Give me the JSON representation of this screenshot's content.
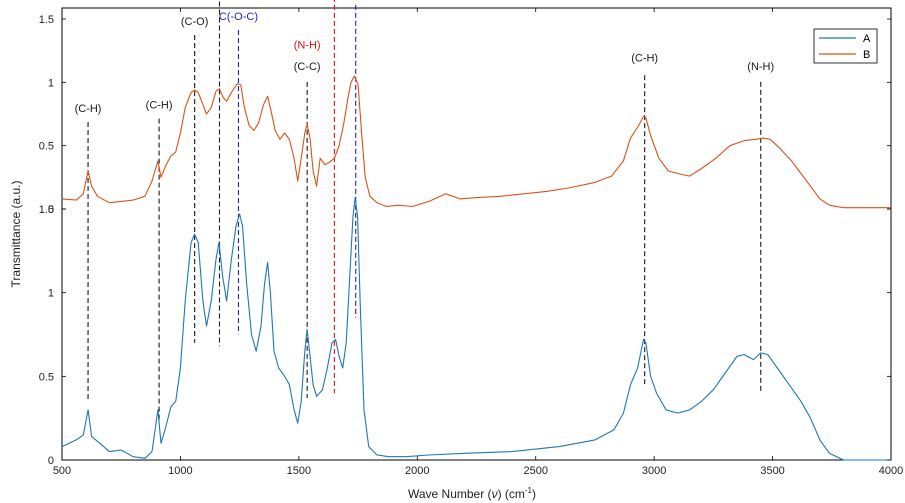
{
  "chart_data": {
    "type": "line",
    "xlabel_prefix": "Wave Number (",
    "xlabel_nu": "ν",
    "xlabel_mid": ") (cm",
    "xlabel_sup": "-1",
    "xlabel_suffix": ")",
    "ylabel": "Transmittance (a.u.)",
    "xlim": [
      500,
      4000
    ],
    "x_ticks": [
      "500",
      "1000",
      "1500",
      "2000",
      "2500",
      "3000",
      "3500",
      "4000"
    ],
    "y_ticks_top": [
      "0",
      "0.5",
      "1",
      "1.5"
    ],
    "y_ticks_bottom": [
      "0",
      "0.5",
      "1",
      "1.5"
    ],
    "legend": {
      "placement": "top-right",
      "entries": [
        "A",
        "B"
      ]
    },
    "colors": {
      "A": "#1f77b4",
      "B": "#d95319",
      "black": "#1a1a1a",
      "blue": "#1f1fd6",
      "red": "#e01010"
    },
    "series": [
      {
        "name": "A",
        "panel": "bottom",
        "points": [
          [
            500,
            0.08
          ],
          [
            560,
            0.12
          ],
          [
            590,
            0.15
          ],
          [
            610,
            0.3
          ],
          [
            625,
            0.14
          ],
          [
            660,
            0.1
          ],
          [
            700,
            0.05
          ],
          [
            750,
            0.06
          ],
          [
            800,
            0.02
          ],
          [
            850,
            0.01
          ],
          [
            880,
            0.05
          ],
          [
            905,
            0.3
          ],
          [
            918,
            0.1
          ],
          [
            935,
            0.18
          ],
          [
            960,
            0.32
          ],
          [
            980,
            0.35
          ],
          [
            1000,
            0.55
          ],
          [
            1020,
            0.95
          ],
          [
            1045,
            1.3
          ],
          [
            1060,
            1.35
          ],
          [
            1075,
            1.3
          ],
          [
            1095,
            0.95
          ],
          [
            1110,
            0.8
          ],
          [
            1130,
            0.95
          ],
          [
            1150,
            1.2
          ],
          [
            1163,
            1.3
          ],
          [
            1178,
            1.1
          ],
          [
            1195,
            0.95
          ],
          [
            1215,
            1.2
          ],
          [
            1235,
            1.4
          ],
          [
            1250,
            1.47
          ],
          [
            1262,
            1.4
          ],
          [
            1280,
            1.05
          ],
          [
            1300,
            0.75
          ],
          [
            1320,
            0.65
          ],
          [
            1340,
            0.8
          ],
          [
            1355,
            1.05
          ],
          [
            1368,
            1.18
          ],
          [
            1380,
            1.0
          ],
          [
            1395,
            0.65
          ],
          [
            1415,
            0.55
          ],
          [
            1440,
            0.5
          ],
          [
            1460,
            0.45
          ],
          [
            1480,
            0.3
          ],
          [
            1495,
            0.22
          ],
          [
            1510,
            0.35
          ],
          [
            1525,
            0.65
          ],
          [
            1535,
            0.78
          ],
          [
            1545,
            0.65
          ],
          [
            1560,
            0.45
          ],
          [
            1575,
            0.38
          ],
          [
            1600,
            0.42
          ],
          [
            1620,
            0.55
          ],
          [
            1640,
            0.7
          ],
          [
            1655,
            0.72
          ],
          [
            1670,
            0.62
          ],
          [
            1685,
            0.55
          ],
          [
            1700,
            0.7
          ],
          [
            1715,
            1.1
          ],
          [
            1728,
            1.45
          ],
          [
            1738,
            1.57
          ],
          [
            1748,
            1.45
          ],
          [
            1760,
            0.9
          ],
          [
            1775,
            0.3
          ],
          [
            1795,
            0.08
          ],
          [
            1830,
            0.03
          ],
          [
            1880,
            0.02
          ],
          [
            1950,
            0.02
          ],
          [
            2050,
            0.03
          ],
          [
            2200,
            0.04
          ],
          [
            2400,
            0.05
          ],
          [
            2600,
            0.08
          ],
          [
            2750,
            0.12
          ],
          [
            2830,
            0.18
          ],
          [
            2870,
            0.28
          ],
          [
            2900,
            0.45
          ],
          [
            2930,
            0.55
          ],
          [
            2955,
            0.72
          ],
          [
            2965,
            0.7
          ],
          [
            2985,
            0.5
          ],
          [
            3010,
            0.4
          ],
          [
            3050,
            0.3
          ],
          [
            3100,
            0.28
          ],
          [
            3150,
            0.3
          ],
          [
            3200,
            0.35
          ],
          [
            3250,
            0.42
          ],
          [
            3300,
            0.52
          ],
          [
            3350,
            0.62
          ],
          [
            3380,
            0.63
          ],
          [
            3420,
            0.6
          ],
          [
            3450,
            0.64
          ],
          [
            3480,
            0.63
          ],
          [
            3520,
            0.55
          ],
          [
            3570,
            0.45
          ],
          [
            3620,
            0.35
          ],
          [
            3660,
            0.25
          ],
          [
            3700,
            0.12
          ],
          [
            3740,
            0.04
          ],
          [
            3800,
            0.0
          ],
          [
            4000,
            0.0
          ]
        ]
      },
      {
        "name": "B",
        "panel": "top",
        "points": [
          [
            500,
            0.08
          ],
          [
            560,
            0.07
          ],
          [
            590,
            0.12
          ],
          [
            610,
            0.3
          ],
          [
            625,
            0.18
          ],
          [
            650,
            0.1
          ],
          [
            700,
            0.05
          ],
          [
            750,
            0.06
          ],
          [
            800,
            0.07
          ],
          [
            850,
            0.1
          ],
          [
            880,
            0.22
          ],
          [
            905,
            0.38
          ],
          [
            918,
            0.25
          ],
          [
            940,
            0.35
          ],
          [
            960,
            0.42
          ],
          [
            980,
            0.45
          ],
          [
            1000,
            0.6
          ],
          [
            1020,
            0.8
          ],
          [
            1045,
            0.92
          ],
          [
            1060,
            0.94
          ],
          [
            1075,
            0.92
          ],
          [
            1090,
            0.85
          ],
          [
            1110,
            0.75
          ],
          [
            1130,
            0.8
          ],
          [
            1150,
            0.93
          ],
          [
            1165,
            0.95
          ],
          [
            1180,
            0.88
          ],
          [
            1195,
            0.85
          ],
          [
            1215,
            0.92
          ],
          [
            1240,
            0.99
          ],
          [
            1255,
            0.98
          ],
          [
            1270,
            0.8
          ],
          [
            1290,
            0.66
          ],
          [
            1310,
            0.62
          ],
          [
            1330,
            0.68
          ],
          [
            1350,
            0.82
          ],
          [
            1368,
            0.89
          ],
          [
            1382,
            0.78
          ],
          [
            1400,
            0.62
          ],
          [
            1420,
            0.55
          ],
          [
            1440,
            0.6
          ],
          [
            1460,
            0.55
          ],
          [
            1480,
            0.4
          ],
          [
            1495,
            0.22
          ],
          [
            1510,
            0.4
          ],
          [
            1525,
            0.6
          ],
          [
            1535,
            0.67
          ],
          [
            1548,
            0.55
          ],
          [
            1560,
            0.3
          ],
          [
            1575,
            0.18
          ],
          [
            1590,
            0.4
          ],
          [
            1610,
            0.35
          ],
          [
            1630,
            0.37
          ],
          [
            1650,
            0.4
          ],
          [
            1670,
            0.5
          ],
          [
            1690,
            0.68
          ],
          [
            1705,
            0.85
          ],
          [
            1720,
            1.0
          ],
          [
            1735,
            1.05
          ],
          [
            1750,
            0.98
          ],
          [
            1765,
            0.6
          ],
          [
            1780,
            0.25
          ],
          [
            1800,
            0.1
          ],
          [
            1830,
            0.05
          ],
          [
            1870,
            0.02
          ],
          [
            1920,
            0.03
          ],
          [
            1980,
            0.02
          ],
          [
            2050,
            0.06
          ],
          [
            2120,
            0.12
          ],
          [
            2180,
            0.08
          ],
          [
            2250,
            0.09
          ],
          [
            2350,
            0.1
          ],
          [
            2450,
            0.12
          ],
          [
            2550,
            0.14
          ],
          [
            2650,
            0.17
          ],
          [
            2750,
            0.21
          ],
          [
            2820,
            0.26
          ],
          [
            2870,
            0.38
          ],
          [
            2900,
            0.56
          ],
          [
            2935,
            0.66
          ],
          [
            2955,
            0.73
          ],
          [
            2965,
            0.72
          ],
          [
            2985,
            0.58
          ],
          [
            3020,
            0.4
          ],
          [
            3060,
            0.3
          ],
          [
            3100,
            0.28
          ],
          [
            3150,
            0.26
          ],
          [
            3200,
            0.32
          ],
          [
            3260,
            0.4
          ],
          [
            3320,
            0.5
          ],
          [
            3380,
            0.54
          ],
          [
            3430,
            0.55
          ],
          [
            3460,
            0.56
          ],
          [
            3490,
            0.55
          ],
          [
            3530,
            0.48
          ],
          [
            3580,
            0.38
          ],
          [
            3620,
            0.28
          ],
          [
            3660,
            0.18
          ],
          [
            3700,
            0.08
          ],
          [
            3740,
            0.03
          ],
          [
            3800,
            0.01
          ],
          [
            3900,
            0.01
          ],
          [
            4000,
            0.01
          ]
        ]
      }
    ],
    "annotations": [
      {
        "label": "(C-H)",
        "x": 610,
        "color": "black",
        "label_y": 0.58,
        "line_top": 0.52,
        "line_bottom": 0.35
      },
      {
        "label": "(C-H)",
        "x": 910,
        "color": "black",
        "label_y": 0.6,
        "line_top": 0.54,
        "line_bottom": 0.22
      },
      {
        "label": "(C-O)",
        "x": 1060,
        "color": "black",
        "label_y": 1.1,
        "line_top": 1.04,
        "line_bottom": 0.7
      },
      {
        "label": "(C-O)",
        "x": 1165,
        "color": "black",
        "label_y": 1.3,
        "line_top": 1.24,
        "line_bottom": 0.68
      },
      {
        "label": "C(-O-C)",
        "x": 1245,
        "color": "blue",
        "label_y": 1.13,
        "line_top": 1.07,
        "line_bottom": 0.75
      },
      {
        "label": "(N-H)",
        "x": 1535,
        "color": "red",
        "label_y": 0.96,
        "line_top": null,
        "line_bottom": null
      },
      {
        "label": "(C-C)",
        "x": 1535,
        "color": "black",
        "label_y": 0.83,
        "line_top": 0.76,
        "line_bottom": 0.37
      },
      {
        "label": "(C-O)",
        "x": 1740,
        "color": "blue",
        "label_y": 1.28,
        "line_top": 1.22,
        "line_bottom": 0.85
      },
      {
        "label": "(C-O)",
        "x": 1650,
        "color": "red",
        "label_y": 1.72,
        "line_top": 1.65,
        "line_bottom": 0.4
      },
      {
        "label": "(C-H)",
        "x": 2960,
        "color": "black",
        "label_y": 0.88,
        "line_top": 0.8,
        "line_bottom": 0.45
      },
      {
        "label": "(N-H)",
        "x": 3450,
        "color": "black",
        "label_y": 0.83,
        "line_top": 0.76,
        "line_bottom": 0.4
      }
    ]
  }
}
